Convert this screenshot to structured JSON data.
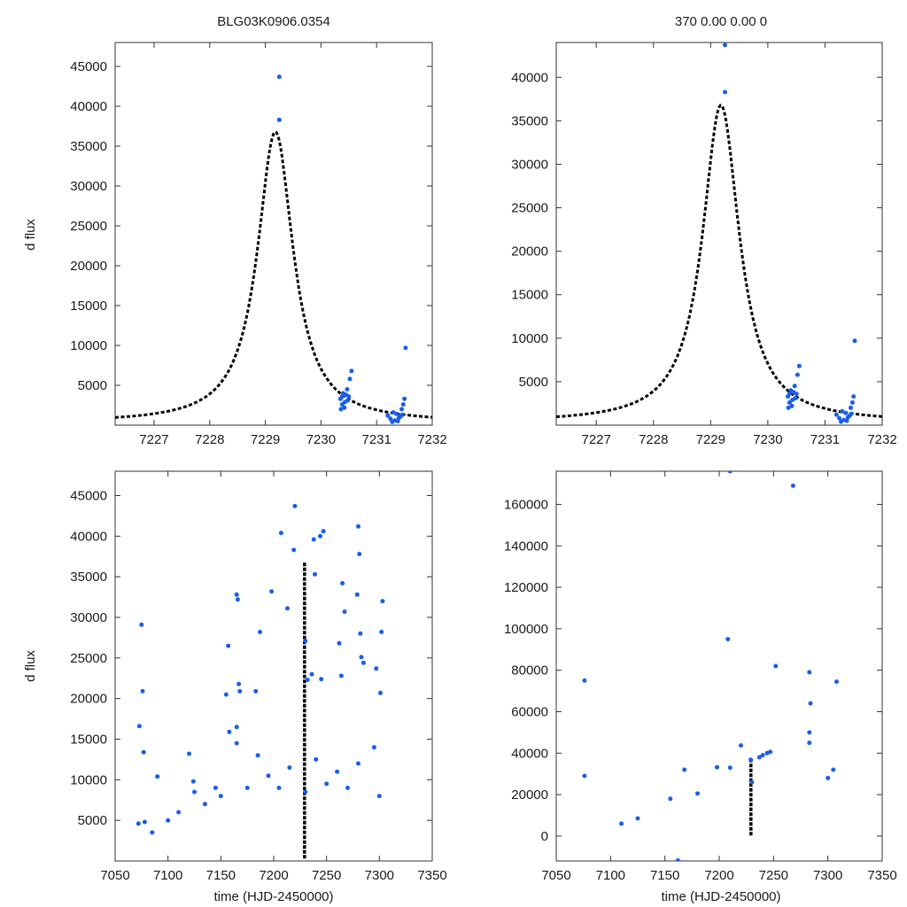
{
  "figure": {
    "panel_titles": [
      "BLG03K0906.0354",
      "370  0.00  0.00  0"
    ],
    "ylabel": "d flux",
    "xlabel": "time (HJD-2450000)"
  },
  "colors": {
    "points": "#1a5ee8",
    "model": "#000000",
    "axes": "#333333"
  },
  "chart_data": [
    {
      "type": "scatter",
      "title": "BLG03K0906.0354",
      "xlabel": "",
      "ylabel": "d flux",
      "xlim": [
        7226.3,
        7232
      ],
      "ylim": [
        0,
        48000
      ],
      "xticks": [
        7227,
        7228,
        7229,
        7230,
        7231,
        7232
      ],
      "yticks": [
        5000,
        10000,
        15000,
        20000,
        25000,
        30000,
        35000,
        40000,
        45000
      ],
      "model": {
        "name": "model",
        "t0": 7229.18,
        "peak": 36800,
        "base": 300,
        "width": 0.42
      },
      "series": [
        {
          "name": "data",
          "points": [
            [
              7229.25,
              43700
            ],
            [
              7229.25,
              38300
            ],
            [
              7230.35,
              3300
            ],
            [
              7230.38,
              2600
            ],
            [
              7230.4,
              4000
            ],
            [
              7230.42,
              2200
            ],
            [
              7230.45,
              3800
            ],
            [
              7230.47,
              4500
            ],
            [
              7230.5,
              3600
            ],
            [
              7230.52,
              5800
            ],
            [
              7230.55,
              6800
            ],
            [
              7230.48,
              3100
            ],
            [
              7230.43,
              2900
            ],
            [
              7230.38,
              3600
            ],
            [
              7230.36,
              2000
            ],
            [
              7231.2,
              1200
            ],
            [
              7231.25,
              800
            ],
            [
              7231.3,
              1600
            ],
            [
              7231.33,
              600
            ],
            [
              7231.36,
              1400
            ],
            [
              7231.4,
              900
            ],
            [
              7231.43,
              1100
            ],
            [
              7231.45,
              2000
            ],
            [
              7231.48,
              2600
            ],
            [
              7231.5,
              3300
            ],
            [
              7231.52,
              9700
            ],
            [
              7231.28,
              400
            ],
            [
              7231.38,
              500
            ],
            [
              7231.46,
              1300
            ]
          ]
        }
      ]
    },
    {
      "type": "scatter",
      "title": "370  0.00  0.00  0",
      "xlabel": "",
      "ylabel": "",
      "xlim": [
        7226.3,
        7232
      ],
      "ylim": [
        0,
        44000
      ],
      "xticks": [
        7227,
        7228,
        7229,
        7230,
        7231,
        7232
      ],
      "yticks": [
        5000,
        10000,
        15000,
        20000,
        25000,
        30000,
        35000,
        40000
      ],
      "model": {
        "name": "model",
        "t0": 7229.18,
        "peak": 36800,
        "base": 300,
        "width": 0.42
      },
      "series": [
        {
          "name": "data",
          "points": [
            [
              7229.25,
              43700
            ],
            [
              7229.25,
              38300
            ],
            [
              7230.35,
              3300
            ],
            [
              7230.38,
              2600
            ],
            [
              7230.4,
              4000
            ],
            [
              7230.42,
              2200
            ],
            [
              7230.45,
              3800
            ],
            [
              7230.47,
              4500
            ],
            [
              7230.5,
              3600
            ],
            [
              7230.52,
              5800
            ],
            [
              7230.55,
              6800
            ],
            [
              7230.48,
              3100
            ],
            [
              7230.43,
              2900
            ],
            [
              7230.38,
              3600
            ],
            [
              7230.36,
              2000
            ],
            [
              7231.2,
              1200
            ],
            [
              7231.25,
              800
            ],
            [
              7231.3,
              1600
            ],
            [
              7231.33,
              600
            ],
            [
              7231.36,
              1400
            ],
            [
              7231.4,
              900
            ],
            [
              7231.43,
              1100
            ],
            [
              7231.45,
              2000
            ],
            [
              7231.48,
              2600
            ],
            [
              7231.5,
              3300
            ],
            [
              7231.52,
              9700
            ],
            [
              7231.28,
              400
            ],
            [
              7231.38,
              500
            ],
            [
              7231.46,
              1300
            ]
          ]
        }
      ]
    },
    {
      "type": "scatter",
      "title": "",
      "xlabel": "time (HJD-2450000)",
      "ylabel": "d flux",
      "xlim": [
        7050,
        7350
      ],
      "ylim": [
        0,
        48000
      ],
      "xticks": [
        7050,
        7100,
        7150,
        7200,
        7250,
        7300,
        7350
      ],
      "yticks": [
        5000,
        10000,
        15000,
        20000,
        25000,
        30000,
        35000,
        40000,
        45000
      ],
      "model_line": {
        "x": 7229.18,
        "ymin": 300,
        "ymax": 36800
      },
      "series": [
        {
          "name": "data",
          "points": [
            [
              7075,
              29100
            ],
            [
              7076,
              20900
            ],
            [
              7073,
              16600
            ],
            [
              7077,
              13400
            ],
            [
              7078,
              4800
            ],
            [
              7072,
              4600
            ],
            [
              7090,
              10400
            ],
            [
              7120,
              13200
            ],
            [
              7124,
              9800
            ],
            [
              7157,
              26500
            ],
            [
              7165,
              32800
            ],
            [
              7166,
              32200
            ],
            [
              7155,
              20500
            ],
            [
              7167,
              21800
            ],
            [
              7168,
              20900
            ],
            [
              7158,
              15900
            ],
            [
              7165,
              16500
            ],
            [
              7183,
              20900
            ],
            [
              7187,
              28200
            ],
            [
              7198,
              33200
            ],
            [
              7207,
              40400
            ],
            [
              7213,
              31100
            ],
            [
              7219,
              38300
            ],
            [
              7220,
              43700
            ],
            [
              7230,
              27100
            ],
            [
              7238,
              39600
            ],
            [
              7239,
              35300
            ],
            [
              7244,
              40000
            ],
            [
              7247,
              40600
            ],
            [
              7232,
              22300
            ],
            [
              7236,
              23000
            ],
            [
              7245,
              22400
            ],
            [
              7265,
              34200
            ],
            [
              7267,
              30700
            ],
            [
              7262,
              26800
            ],
            [
              7264,
              22800
            ],
            [
              7280,
              41200
            ],
            [
              7281,
              37800
            ],
            [
              7279,
              32800
            ],
            [
              7282,
              28000
            ],
            [
              7285,
              24400
            ],
            [
              7302,
              28200
            ],
            [
              7303,
              32000
            ],
            [
              7297,
              23700
            ],
            [
              7301,
              20700
            ],
            [
              7283,
              25100
            ],
            [
              7280,
              12000
            ],
            [
              7270,
              9000
            ],
            [
              7295,
              14000
            ],
            [
              7300,
              8000
            ],
            [
              7260,
              11000
            ],
            [
              7250,
              9500
            ],
            [
              7240,
              12500
            ],
            [
              7230,
              8500
            ],
            [
              7215,
              11500
            ],
            [
              7205,
              9000
            ],
            [
              7195,
              10500
            ],
            [
              7185,
              13000
            ],
            [
              7175,
              9000
            ],
            [
              7165,
              14500
            ],
            [
              7150,
              8000
            ],
            [
              7145,
              9000
            ],
            [
              7135,
              7000
            ],
            [
              7125,
              8500
            ],
            [
              7110,
              6000
            ],
            [
              7100,
              5000
            ],
            [
              7085,
              3500
            ]
          ]
        }
      ]
    },
    {
      "type": "scatter",
      "title": "",
      "xlabel": "time (HJD-2450000)",
      "ylabel": "",
      "xlim": [
        7050,
        7350
      ],
      "ylim": [
        -12000,
        176000
      ],
      "xticks": [
        7050,
        7100,
        7150,
        7200,
        7250,
        7300,
        7350
      ],
      "yticks": [
        0,
        20000,
        40000,
        60000,
        80000,
        100000,
        120000,
        140000,
        160000
      ],
      "model_line": {
        "x": 7229.18,
        "ymin": 300,
        "ymax": 36800
      },
      "series": [
        {
          "name": "data",
          "points": [
            [
              7210,
              176000
            ],
            [
              7268,
              169000
            ],
            [
              7208,
              95000
            ],
            [
              7252,
              82000
            ],
            [
              7076,
              75000
            ],
            [
              7283,
              79000
            ],
            [
              7308,
              74500
            ],
            [
              7284,
              64000
            ],
            [
              7283,
              50000
            ],
            [
              7283,
              45000
            ],
            [
              7076,
              29000
            ],
            [
              7162,
              -11800
            ],
            [
              7220,
              43700
            ],
            [
              7210,
              33000
            ],
            [
              7229,
              36800
            ],
            [
              7240,
              39000
            ],
            [
              7244,
              40000
            ],
            [
              7247,
              40600
            ],
            [
              7237,
              38000
            ],
            [
              7180,
              20500
            ],
            [
              7125,
              8500
            ],
            [
              7110,
              6000
            ],
            [
              7155,
              18000
            ],
            [
              7168,
              32000
            ],
            [
              7198,
              33200
            ],
            [
              7230,
              26000
            ],
            [
              7300,
              28000
            ],
            [
              7305,
              32000
            ]
          ]
        }
      ]
    }
  ]
}
